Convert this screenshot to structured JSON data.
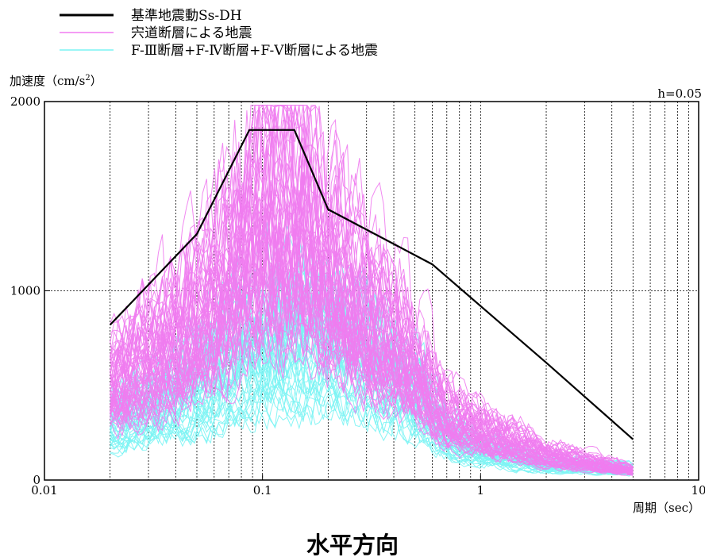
{
  "chart_data": {
    "type": "line",
    "xscale": "log",
    "xlim": [
      0.01,
      10
    ],
    "ylim": [
      0,
      2000
    ],
    "xticks": [
      0.01,
      0.1,
      1,
      10
    ],
    "xtick_labels": [
      "0.01",
      "0.1",
      "1",
      "10"
    ],
    "yticks": [
      0,
      1000,
      2000
    ],
    "ytick_labels": [
      "0",
      "1000",
      "2000"
    ],
    "ylabel_main": "加速度（cm/s",
    "ylabel_sup": "2",
    "ylabel_close": "）",
    "xlabel": "周期（sec）",
    "annotation": "h=0.05",
    "caption": "水平方向",
    "grid": "dashed vertical at log minor ticks, dashed horizontal at 1000",
    "legend_placement": "top-left above plot",
    "legend": [
      {
        "label": "基準地震動Ss-DH",
        "color": "#000000"
      },
      {
        "label": "宍道断層による地震",
        "color": "#f07cf0"
      },
      {
        "label": "F-Ⅲ断層+F-Ⅳ断層+F-Ⅴ断層による地震",
        "color": "#7cf4f4"
      }
    ],
    "series": [
      {
        "name": "基準地震動Ss-DH",
        "color": "#000000",
        "x": [
          0.02,
          0.05,
          0.087,
          0.14,
          0.2,
          0.6,
          2.0,
          5.0
        ],
        "y": [
          820,
          1300,
          1850,
          1850,
          1430,
          1140,
          620,
          215
        ]
      },
      {
        "name": "宍道断層による地震",
        "color": "#f07cf0",
        "count": 60,
        "envelope_x": [
          0.02,
          0.03,
          0.05,
          0.08,
          0.1,
          0.14,
          0.2,
          0.3,
          0.5,
          0.7,
          1,
          2,
          5
        ],
        "envelope_y": [
          500,
          620,
          820,
          1150,
          1350,
          1400,
          1100,
          850,
          600,
          330,
          260,
          130,
          50
        ]
      },
      {
        "name": "F-Ⅲ断層+F-Ⅳ断層+F-Ⅴ断層による地震",
        "color": "#7cf4f4",
        "count": 45,
        "envelope_x": [
          0.02,
          0.03,
          0.05,
          0.08,
          0.1,
          0.14,
          0.2,
          0.3,
          0.5,
          0.7,
          1,
          2,
          5
        ],
        "envelope_y": [
          300,
          360,
          470,
          620,
          680,
          720,
          700,
          620,
          450,
          220,
          150,
          80,
          55
        ]
      }
    ]
  }
}
